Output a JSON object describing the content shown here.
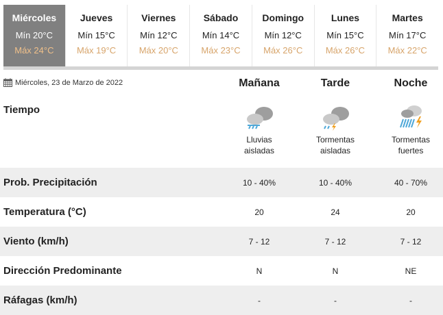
{
  "days": [
    {
      "name": "Miércoles",
      "min": "Mín 20°C",
      "max": "Máx 24°C",
      "selected": true
    },
    {
      "name": "Jueves",
      "min": "Mín 15°C",
      "max": "Máx 19°C"
    },
    {
      "name": "Viernes",
      "min": "Mín 12°C",
      "max": "Máx 20°C"
    },
    {
      "name": "Sábado",
      "min": "Mín 14°C",
      "max": "Máx 23°C"
    },
    {
      "name": "Domingo",
      "min": "Mín 12°C",
      "max": "Máx 26°C"
    },
    {
      "name": "Lunes",
      "min": "Mín 15°C",
      "max": "Máx 26°C"
    },
    {
      "name": "Martes",
      "min": "Mín 17°C",
      "max": "Máx 22°C"
    }
  ],
  "date": "Miércoles, 23 de Marzo de 2022",
  "periods": [
    "Mañana",
    "Tarde",
    "Noche"
  ],
  "weather_label": "Tiempo",
  "weather": [
    {
      "icon": "rain-cloud-icon",
      "l1": "Lluvias",
      "l2": "aisladas"
    },
    {
      "icon": "storm-cloud-icon",
      "l1": "Tormentas",
      "l2": "aisladas"
    },
    {
      "icon": "heavy-storm-icon",
      "l1": "Tormentas",
      "l2": "fuertes"
    }
  ],
  "rows": [
    {
      "label": "Prob. Precipitación",
      "values": [
        "10 - 40%",
        "10 - 40%",
        "40 - 70%"
      ]
    },
    {
      "label": "Temperatura (°C)",
      "values": [
        "20",
        "24",
        "20"
      ]
    },
    {
      "label": "Viento (km/h)",
      "values": [
        "7 - 12",
        "7 - 12",
        "7 - 12"
      ]
    },
    {
      "label": "Dirección Predominante",
      "values": [
        "N",
        "N",
        "NE"
      ]
    },
    {
      "label": "Ráfagas (km/h)",
      "values": [
        "-",
        "-",
        "-"
      ]
    }
  ],
  "colors": {
    "selected_tab": "#808080",
    "max_temp": "#d7a46a",
    "row_alt": "#eeeeee"
  }
}
